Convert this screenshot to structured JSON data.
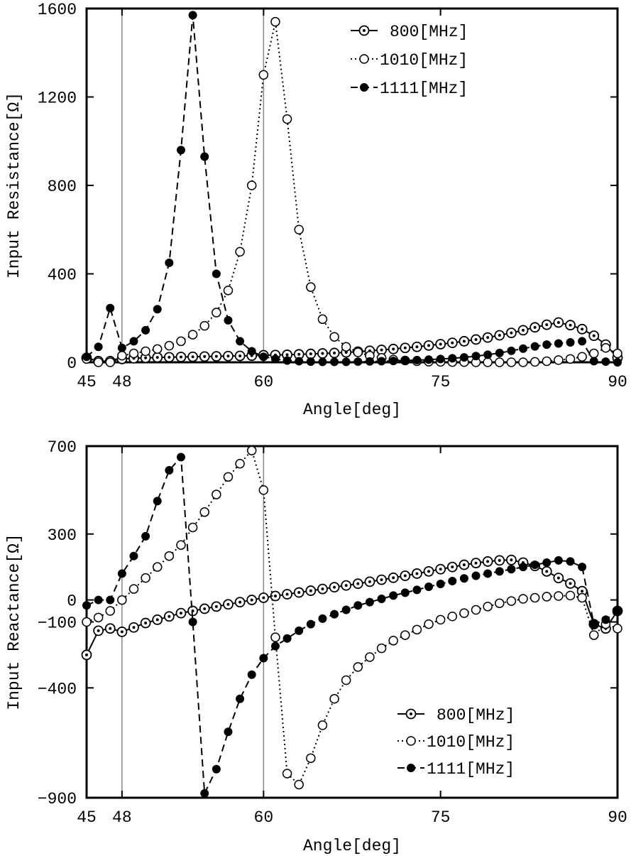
{
  "chart_data": [
    {
      "type": "line",
      "xlabel": "Angle[deg]",
      "ylabel": "Input Resistance[Ω]",
      "xlim": [
        45,
        90
      ],
      "ylim": [
        0,
        1600
      ],
      "xticks": [
        45,
        48,
        60,
        75,
        90
      ],
      "yticks": [
        0,
        400,
        800,
        1200,
        1600
      ],
      "vlines": [
        48,
        60
      ],
      "grid": false,
      "legend_position": "top-right",
      "series": [
        {
          "name": "800[MHz]",
          "marker": "dotted-circle",
          "linestyle": "solid",
          "x": [
            45,
            46,
            47,
            48,
            49,
            50,
            51,
            52,
            53,
            54,
            55,
            56,
            57,
            58,
            59,
            60,
            61,
            62,
            63,
            64,
            65,
            66,
            67,
            68,
            69,
            70,
            71,
            72,
            73,
            74,
            75,
            76,
            77,
            78,
            79,
            80,
            81,
            82,
            83,
            84,
            85,
            86,
            87,
            88,
            89,
            90
          ],
          "y": [
            20,
            5,
            5,
            15,
            18,
            20,
            22,
            23,
            24,
            25,
            26,
            27,
            28,
            29,
            30,
            32,
            33,
            34,
            36,
            38,
            40,
            42,
            45,
            48,
            52,
            56,
            60,
            65,
            70,
            76,
            82,
            88,
            95,
            103,
            112,
            122,
            133,
            145,
            158,
            170,
            180,
            168,
            150,
            120,
            80,
            20
          ]
        },
        {
          "name": "1010[MHz]",
          "marker": "open-circle",
          "linestyle": "dotted",
          "x": [
            45,
            46,
            47,
            48,
            49,
            50,
            51,
            52,
            53,
            54,
            55,
            56,
            57,
            58,
            59,
            60,
            61,
            62,
            63,
            64,
            65,
            66,
            67,
            68,
            69,
            70,
            71,
            72,
            73,
            74,
            75,
            76,
            77,
            78,
            79,
            80,
            81,
            82,
            83,
            84,
            85,
            86,
            87,
            88,
            89,
            90
          ],
          "y": [
            15,
            0,
            0,
            30,
            40,
            50,
            60,
            75,
            95,
            125,
            165,
            225,
            325,
            500,
            800,
            1300,
            1540,
            1100,
            600,
            340,
            195,
            115,
            70,
            45,
            30,
            20,
            12,
            8,
            5,
            3,
            2,
            1,
            1,
            0,
            0,
            0,
            0,
            0,
            2,
            5,
            10,
            15,
            25,
            40,
            65,
            40
          ]
        },
        {
          "name": "1111[MHz]",
          "marker": "filled-circle",
          "linestyle": "dashed",
          "x": [
            45,
            46,
            47,
            48,
            49,
            50,
            51,
            52,
            53,
            54,
            55,
            56,
            57,
            58,
            59,
            60,
            61,
            62,
            63,
            64,
            65,
            66,
            67,
            68,
            69,
            70,
            71,
            72,
            73,
            74,
            75,
            76,
            77,
            78,
            79,
            80,
            81,
            82,
            83,
            84,
            85,
            86,
            87,
            88,
            89,
            90
          ],
          "y": [
            25,
            70,
            245,
            65,
            95,
            145,
            240,
            450,
            960,
            1570,
            930,
            400,
            190,
            95,
            50,
            25,
            15,
            8,
            5,
            3,
            2,
            2,
            2,
            3,
            4,
            5,
            6,
            8,
            10,
            12,
            15,
            18,
            22,
            28,
            34,
            42,
            52,
            62,
            72,
            80,
            85,
            90,
            95,
            5,
            3,
            0
          ]
        }
      ]
    },
    {
      "type": "line",
      "xlabel": "Angle[deg]",
      "ylabel": "Input Reactance[Ω]",
      "xlim": [
        45,
        90
      ],
      "ylim": [
        -900,
        700
      ],
      "xticks": [
        45,
        48,
        60,
        75,
        90
      ],
      "yticks": [
        -900,
        -400,
        -100,
        0,
        300,
        700
      ],
      "vlines": [
        48,
        60
      ],
      "grid": false,
      "legend_position": "bottom-right",
      "series": [
        {
          "name": "800[MHz]",
          "marker": "dotted-circle",
          "linestyle": "solid",
          "x": [
            45,
            46,
            47,
            48,
            49,
            50,
            51,
            52,
            53,
            54,
            55,
            56,
            57,
            58,
            59,
            60,
            61,
            62,
            63,
            64,
            65,
            66,
            67,
            68,
            69,
            70,
            71,
            72,
            73,
            74,
            75,
            76,
            77,
            78,
            79,
            80,
            81,
            82,
            83,
            84,
            85,
            86,
            87,
            88,
            89,
            90
          ],
          "y": [
            -250,
            -140,
            -130,
            -145,
            -125,
            -105,
            -90,
            -75,
            -60,
            -50,
            -40,
            -30,
            -20,
            -10,
            0,
            10,
            18,
            26,
            34,
            42,
            50,
            58,
            66,
            74,
            83,
            92,
            101,
            110,
            120,
            130,
            140,
            150,
            160,
            168,
            175,
            180,
            182,
            170,
            155,
            130,
            100,
            75,
            40,
            -110,
            -130,
            -50
          ]
        },
        {
          "name": "1010[MHz]",
          "marker": "open-circle",
          "linestyle": "dotted",
          "x": [
            45,
            46,
            47,
            48,
            49,
            50,
            51,
            52,
            53,
            54,
            55,
            56,
            57,
            58,
            59,
            60,
            61,
            62,
            63,
            64,
            65,
            66,
            67,
            68,
            69,
            70,
            71,
            72,
            73,
            74,
            75,
            76,
            77,
            78,
            79,
            80,
            81,
            82,
            83,
            84,
            85,
            86,
            87,
            88,
            89,
            90
          ],
          "y": [
            -100,
            -80,
            -50,
            0,
            50,
            100,
            150,
            200,
            250,
            330,
            400,
            480,
            560,
            620,
            680,
            500,
            -170,
            -790,
            -840,
            -720,
            -570,
            -450,
            -365,
            -305,
            -260,
            -220,
            -185,
            -160,
            -135,
            -110,
            -90,
            -75,
            -60,
            -45,
            -30,
            -15,
            -5,
            5,
            10,
            15,
            18,
            20,
            10,
            -160,
            -110,
            -130
          ]
        },
        {
          "name": "1111[MHz]",
          "marker": "filled-circle",
          "linestyle": "dashed",
          "x": [
            45,
            46,
            47,
            48,
            49,
            50,
            51,
            52,
            53,
            54,
            55,
            56,
            57,
            58,
            59,
            60,
            61,
            62,
            63,
            64,
            65,
            66,
            67,
            68,
            69,
            70,
            71,
            72,
            73,
            74,
            75,
            76,
            77,
            78,
            79,
            80,
            81,
            82,
            83,
            84,
            85,
            86,
            87,
            88,
            89,
            90
          ],
          "y": [
            -25,
            0,
            0,
            120,
            200,
            290,
            450,
            590,
            650,
            -100,
            -880,
            -770,
            -600,
            -450,
            -340,
            -265,
            -210,
            -175,
            -140,
            -110,
            -85,
            -65,
            -45,
            -25,
            -10,
            5,
            20,
            33,
            46,
            60,
            73,
            86,
            98,
            110,
            120,
            130,
            140,
            150,
            160,
            170,
            180,
            175,
            150,
            -110,
            -90,
            -50
          ]
        }
      ]
    }
  ]
}
